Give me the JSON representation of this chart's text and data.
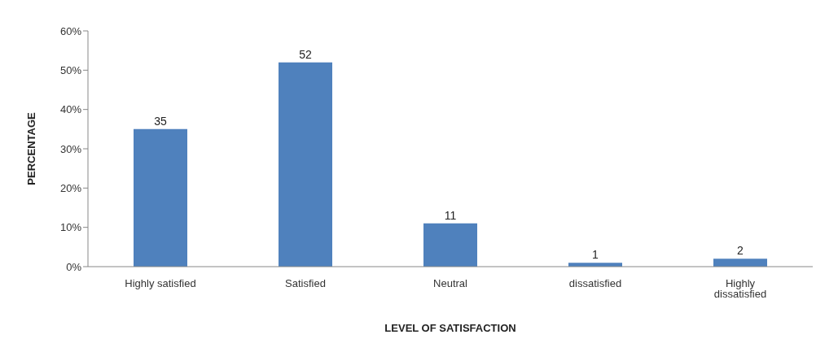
{
  "chart_data": {
    "type": "bar",
    "xlabel": "LEVEL OF SATISFACTION",
    "ylabel": "PERCENTAGE",
    "categories": [
      "Highly satisfied",
      "Satisfied",
      "Neutral",
      "dissatisfied",
      "Highly dissatisfied"
    ],
    "values": [
      35,
      52,
      11,
      1,
      2
    ],
    "color": "#4f81bd",
    "data_labels": true,
    "ylim": [
      0,
      60
    ],
    "yticks": [
      {
        "value": 0,
        "label": "0%"
      },
      {
        "value": 10,
        "label": "10%"
      },
      {
        "value": 20,
        "label": "20%"
      },
      {
        "value": 30,
        "label": "30%"
      },
      {
        "value": 40,
        "label": "40%"
      },
      {
        "value": 50,
        "label": "50%"
      },
      {
        "value": 60,
        "label": "60%"
      }
    ],
    "grid": false,
    "legend": false
  }
}
